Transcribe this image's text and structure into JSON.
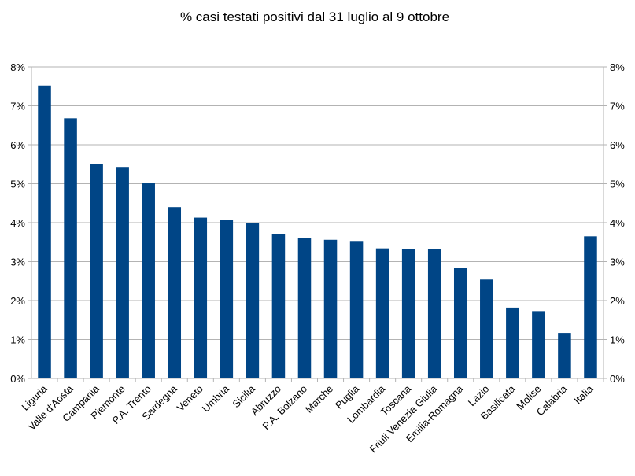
{
  "chart_data": {
    "type": "bar",
    "title": "% casi testati positivi dal 31 luglio al 9 ottobre",
    "xlabel": "",
    "ylabel": "",
    "categories": [
      "Liguria",
      "Valle d'Aosta",
      "Campania",
      "Piemonte",
      "P.A. Trento",
      "Sardegna",
      "Veneto",
      "Umbria",
      "Sicilia",
      "Abruzzo",
      "P.A. Bolzano",
      "Marche",
      "Puglia",
      "Lombardia",
      "Toscana",
      "Friuli Venezia Giulia",
      "Emilia-Romagna",
      "Lazio",
      "Basilicata",
      "Molise",
      "Calabria",
      "Italia"
    ],
    "values": [
      7.52,
      6.68,
      5.5,
      5.43,
      5.01,
      4.4,
      4.13,
      4.07,
      4.0,
      3.71,
      3.6,
      3.56,
      3.53,
      3.34,
      3.32,
      3.32,
      2.84,
      2.54,
      1.82,
      1.73,
      1.17,
      3.65
    ],
    "ylim": [
      0,
      8
    ],
    "yticks": [
      "0%",
      "1%",
      "2%",
      "3%",
      "4%",
      "5%",
      "6%",
      "7%",
      "8%"
    ],
    "grid": true,
    "legend": "none",
    "colors": {
      "bar": "#004586",
      "grid": "#b3b3b3",
      "axis": "#b3b3b3"
    }
  }
}
